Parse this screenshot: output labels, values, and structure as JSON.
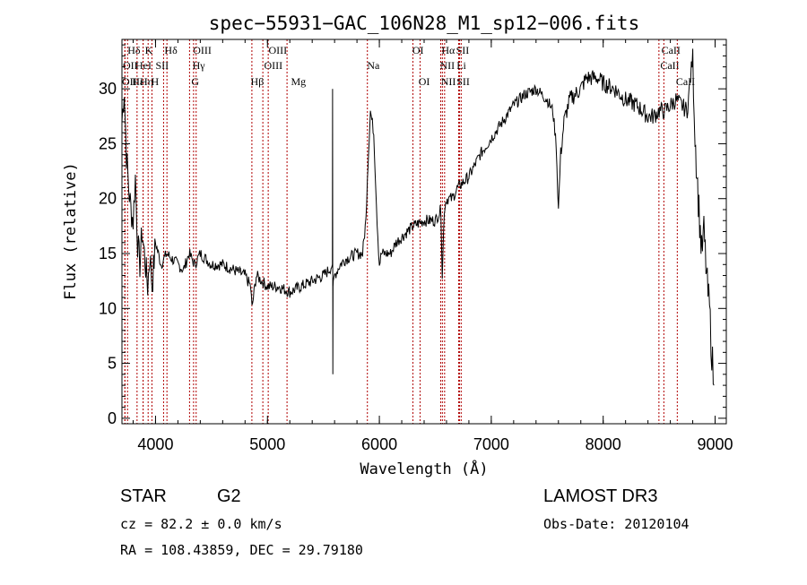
{
  "chart_data": {
    "type": "line",
    "title": "spec−55931−GAC_106N28_M1_sp12−006.fits",
    "xlabel": "Wavelength (Å)",
    "ylabel": "Flux (relative)",
    "xlim": [
      3700,
      9100
    ],
    "ylim": [
      -0.5,
      34.5
    ],
    "xticks": [
      4000,
      5000,
      6000,
      7000,
      8000,
      9000
    ],
    "yticks": [
      0,
      5,
      10,
      15,
      20,
      25,
      30
    ],
    "series": [
      {
        "name": "spectrum",
        "x": [
          3700,
          3720,
          3740,
          3760,
          3780,
          3800,
          3820,
          3840,
          3860,
          3880,
          3900,
          3930,
          3950,
          3970,
          4000,
          4050,
          4100,
          4150,
          4200,
          4250,
          4300,
          4350,
          4400,
          4450,
          4500,
          4600,
          4700,
          4800,
          4850,
          4862,
          4900,
          4950,
          5000,
          5100,
          5200,
          5300,
          5400,
          5500,
          5550,
          5580,
          5582,
          5584,
          5586,
          5588,
          5600,
          5650,
          5700,
          5800,
          5850,
          5880,
          5893,
          5920,
          5950,
          5980,
          6000,
          6020,
          6050,
          6100,
          6150,
          6200,
          6300,
          6400,
          6500,
          6550,
          6562,
          6580,
          6600,
          6650,
          6700,
          6800,
          6900,
          7000,
          7100,
          7200,
          7300,
          7400,
          7500,
          7550,
          7580,
          7600,
          7620,
          7650,
          7700,
          7800,
          7850,
          7900,
          7950,
          8000,
          8100,
          8200,
          8300,
          8400,
          8450,
          8500,
          8550,
          8600,
          8650,
          8700,
          8750,
          8800,
          8820,
          8850,
          8880,
          8900,
          8930,
          8950,
          8970,
          8990
        ],
        "values": [
          27,
          30,
          24,
          21,
          19,
          18,
          22,
          16,
          14,
          17,
          15,
          12,
          15,
          12,
          16,
          14,
          15,
          14.5,
          14,
          13.5,
          15,
          14,
          15,
          14.5,
          14,
          14,
          13.5,
          13,
          12,
          10,
          13,
          12.5,
          12,
          12,
          11.5,
          12,
          12.5,
          13,
          13.5,
          14,
          30,
          4,
          12,
          12,
          13,
          14,
          14.5,
          15,
          15,
          18,
          22,
          28,
          26,
          18,
          14,
          15,
          15,
          15,
          16,
          16.5,
          17.5,
          18,
          18,
          19,
          13,
          19,
          20,
          20,
          21,
          22,
          24,
          25.5,
          27,
          28.5,
          29.5,
          30,
          29,
          28,
          25,
          19,
          24,
          27,
          29,
          30,
          31,
          31,
          31,
          30.5,
          30,
          29,
          28.5,
          27.5,
          27.5,
          28,
          28,
          28.5,
          29,
          28.5,
          28,
          33,
          26,
          20,
          15,
          17,
          12,
          10,
          6,
          3
        ]
      }
    ],
    "lines": [
      {
        "name": "Hδ",
        "x": 3750,
        "row": 0,
        "lx": 3750
      },
      {
        "name": "K",
        "x": 3934,
        "row": 0,
        "lx": 3905
      },
      {
        "name": "Hδ",
        "x": 4102,
        "row": 0,
        "lx": 4080
      },
      {
        "name": "OIII",
        "x": 4363,
        "row": 0,
        "lx": 4335
      },
      {
        "name": "OIII",
        "x": 5007,
        "row": 0,
        "lx": 5010
      },
      {
        "name": "OI",
        "x": 6300,
        "row": 0,
        "lx": 6295
      },
      {
        "name": "Hα",
        "x": 6563,
        "row": 0,
        "lx": 6555
      },
      {
        "name": "SII",
        "x": 6716,
        "row": 0,
        "lx": 6685
      },
      {
        "name": "CaII",
        "x": 8498,
        "row": 0,
        "lx": 8520
      },
      {
        "name": "OII",
        "x": 3727,
        "row": 1,
        "lx": 3708
      },
      {
        "name": "HeI",
        "x": 3889,
        "row": 1,
        "lx": 3820
      },
      {
        "name": "SII",
        "x": 4072,
        "row": 1,
        "lx": 4000
      },
      {
        "name": "Hγ",
        "x": 4340,
        "row": 1,
        "lx": 4330
      },
      {
        "name": "OIII",
        "x": 4959,
        "row": 1,
        "lx": 4970
      },
      {
        "name": "NII",
        "x": 6548,
        "row": 1,
        "lx": 6540
      },
      {
        "name": "Li",
        "x": 6708,
        "row": 1,
        "lx": 6690
      },
      {
        "name": "CaII",
        "x": 8542,
        "row": 1,
        "lx": 8510
      },
      {
        "name": "OII",
        "x": 3726,
        "row": 2,
        "lx": 3700
      },
      {
        "name": "Hε",
        "x": 3835,
        "row": 2,
        "lx": 3790
      },
      {
        "name": "Hη",
        "x": 3889,
        "row": 2,
        "lx": 3860
      },
      {
        "name": "H",
        "x": 3968,
        "row": 2,
        "lx": 3960
      },
      {
        "name": "G",
        "x": 4304,
        "row": 2,
        "lx": 4320
      },
      {
        "name": "Hβ",
        "x": 4861,
        "row": 2,
        "lx": 4850
      },
      {
        "name": "Mg",
        "x": 5175,
        "row": 2,
        "lx": 5210
      },
      {
        "name": "Na",
        "x": 5893,
        "row": 0,
        "lx": 5890,
        "ny": 77
      },
      {
        "name": "OI",
        "x": 6364,
        "row": 2,
        "lx": 6350
      },
      {
        "name": "NII",
        "x": 6583,
        "row": 2,
        "lx": 6550
      },
      {
        "name": "SII",
        "x": 6731,
        "row": 2,
        "lx": 6690
      },
      {
        "name": "CaII",
        "x": 8662,
        "row": 2,
        "lx": 8650
      }
    ]
  },
  "info": {
    "object_class": "STAR",
    "subclass": "G2",
    "survey": "LAMOST DR3",
    "redshift": "cz = 82.2 ± 0.0 km/s",
    "obs_date": "Obs-Date: 20120104",
    "coords": "RA = 108.43859, DEC =  29.79180"
  }
}
